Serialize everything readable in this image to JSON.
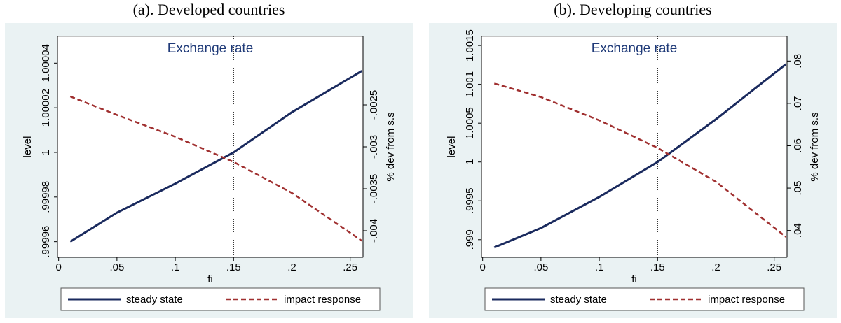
{
  "chart_data": [
    {
      "type": "line",
      "caption": "(a). Developed countries",
      "title": "Exchange rate",
      "x_label": "fi",
      "y_label": "level",
      "y2_label": "% dev from s.s",
      "x": [
        0.01,
        0.05,
        0.1,
        0.15,
        0.2,
        0.26
      ],
      "series": [
        {
          "name": "steady state",
          "color": "#1a2a5e",
          "dash": "solid",
          "values": [
            0.99996,
            0.999973,
            0.999986,
            1.0,
            1.000018,
            1.0000365
          ]
        },
        {
          "name": "impact response",
          "color": "#a03030",
          "dash": "dashed",
          "axis": "y2",
          "values": [
            -0.0024,
            -0.00262,
            -0.00288,
            -0.00318,
            -0.00355,
            -0.00412
          ]
        }
      ],
      "xlim": [
        -0.001,
        0.261
      ],
      "xticks": [
        0,
        {
          "value": 0.05,
          "label": ".05"
        },
        {
          "value": 0.1,
          "label": ".1"
        },
        {
          "value": 0.15,
          "label": ".15"
        },
        {
          "value": 0.2,
          "label": ".2"
        },
        {
          "value": 0.25,
          "label": ".25"
        }
      ],
      "ylim": [
        0.999953,
        1.000052
      ],
      "yticks": [
        {
          "value": 0.99996,
          "label": ".99996"
        },
        {
          "value": 0.99998,
          "label": ".99998"
        },
        1,
        {
          "value": 1.00002,
          "label": "1.00002"
        },
        {
          "value": 1.00004,
          "label": "1.00004"
        }
      ],
      "y2lim": [
        -0.004317,
        -0.001683
      ],
      "y2ticks": [
        {
          "value": -0.004,
          "label": "-.004"
        },
        {
          "value": -0.0035,
          "label": "-.0035"
        },
        {
          "value": -0.003,
          "label": "-.003"
        },
        {
          "value": -0.0025,
          "label": "-.0025"
        }
      ],
      "xline": 0.15,
      "legend": "bottom"
    },
    {
      "type": "line",
      "caption": "(b). Developing countries",
      "title": "Exchange rate",
      "x_label": "fi",
      "y_label": "level",
      "y2_label": "% dev from s.s",
      "x": [
        0.01,
        0.05,
        0.1,
        0.15,
        0.2,
        0.26
      ],
      "series": [
        {
          "name": "steady state",
          "color": "#1a2a5e",
          "dash": "solid",
          "values": [
            0.9989,
            0.99915,
            0.99955,
            1.0,
            1.00055,
            1.00126
          ]
        },
        {
          "name": "impact response",
          "color": "#a03030",
          "dash": "dashed",
          "axis": "y2",
          "values": [
            0.0747,
            0.0715,
            0.066,
            0.0595,
            0.0515,
            0.0385
          ]
        }
      ],
      "xlim": [
        -0.001,
        0.261
      ],
      "xticks": [
        0,
        {
          "value": 0.05,
          "label": ".05"
        },
        {
          "value": 0.1,
          "label": ".1"
        },
        {
          "value": 0.15,
          "label": ".15"
        },
        {
          "value": 0.2,
          "label": ".2"
        },
        {
          "value": 0.25,
          "label": ".25"
        }
      ],
      "ylim": [
        0.998773,
        1.001618
      ],
      "yticks": [
        {
          "value": 0.999,
          "label": ".999"
        },
        {
          "value": 0.9995,
          "label": ".9995"
        },
        1,
        {
          "value": 1.0005,
          "label": "1.0005"
        },
        {
          "value": 1.001,
          "label": "1.001"
        },
        {
          "value": 1.0015,
          "label": "1.0015"
        }
      ],
      "y2lim": [
        0.03367,
        0.08583
      ],
      "y2ticks": [
        {
          "value": 0.04,
          "label": ".04"
        },
        {
          "value": 0.05,
          "label": ".05"
        },
        {
          "value": 0.06,
          "label": ".06"
        },
        {
          "value": 0.07,
          "label": ".07"
        },
        {
          "value": 0.08,
          "label": ".08"
        }
      ],
      "xline": 0.15,
      "legend": "bottom"
    }
  ]
}
